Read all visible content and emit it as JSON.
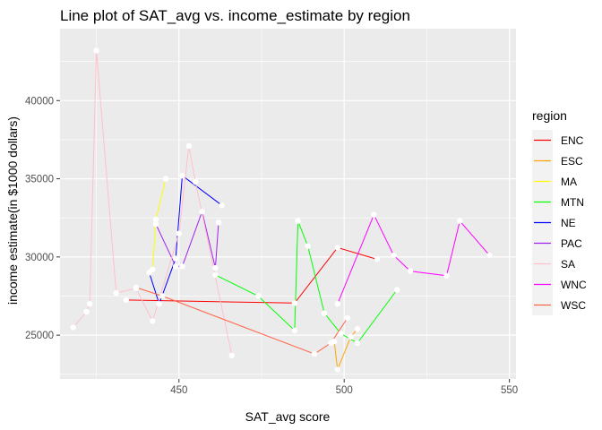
{
  "chart_data": {
    "type": "line",
    "title": "Line plot of SAT_avg vs. income_estimate by region",
    "xlabel": "SAT_avg score",
    "ylabel": "income estimate(in $1000 dollars)",
    "xlim": [
      414,
      552
    ],
    "ylim": [
      22200,
      44600
    ],
    "x_ticks": [
      450,
      500,
      550
    ],
    "y_ticks": [
      25000,
      30000,
      35000,
      40000
    ],
    "x_tick_labels": [
      "450",
      "500",
      "550"
    ],
    "y_tick_labels": [
      "25000",
      "30000",
      "35000",
      "40000"
    ],
    "grid": true,
    "legend": {
      "title": "region",
      "position": "right"
    },
    "series": [
      {
        "name": "ENC",
        "color": "#FF0000",
        "x": [
          434,
          485,
          498,
          510
        ],
        "y": [
          27250,
          27050,
          30600,
          29850
        ]
      },
      {
        "name": "ESC",
        "color": "#FFA500",
        "x": [
          497,
          498,
          502,
          504
        ],
        "y": [
          24600,
          22800,
          24900,
          25400
        ]
      },
      {
        "name": "MA",
        "color": "#FFFF00",
        "x": [
          442,
          443,
          446
        ],
        "y": [
          29200,
          32400,
          35000
        ]
      },
      {
        "name": "MTN",
        "color": "#00FF00",
        "x": [
          461,
          474,
          485,
          486,
          489,
          494,
          499,
          504,
          516
        ],
        "y": [
          28850,
          27500,
          25300,
          32300,
          30700,
          26400,
          25100,
          24500,
          27900
        ]
      },
      {
        "name": "NE",
        "color": "#0000FF",
        "x": [
          441,
          444,
          449,
          451,
          463
        ],
        "y": [
          29000,
          27000,
          29900,
          35200,
          33300
        ]
      },
      {
        "name": "PAC",
        "color": "#A020F0",
        "x": [
          443,
          449,
          451,
          457,
          461,
          462
        ],
        "y": [
          32100,
          29400,
          29400,
          32900,
          29300,
          32200
        ]
      },
      {
        "name": "SA",
        "color": "#FFC0CB",
        "x": [
          418,
          422,
          423,
          425,
          431,
          437,
          442,
          450,
          453,
          455,
          466
        ],
        "y": [
          25500,
          26500,
          27000,
          43200,
          27700,
          28000,
          25900,
          31500,
          37100,
          34800,
          23700
        ]
      },
      {
        "name": "WNC",
        "color": "#FF00FF",
        "x": [
          498,
          509,
          515,
          520,
          531,
          535,
          544
        ],
        "y": [
          27000,
          32700,
          30100,
          29100,
          28800,
          32300,
          30100
        ]
      },
      {
        "name": "WSC",
        "color": "#FF6347",
        "x": [
          437,
          445,
          491,
          496,
          501
        ],
        "y": [
          28050,
          27500,
          23800,
          24500,
          26100
        ]
      }
    ]
  }
}
